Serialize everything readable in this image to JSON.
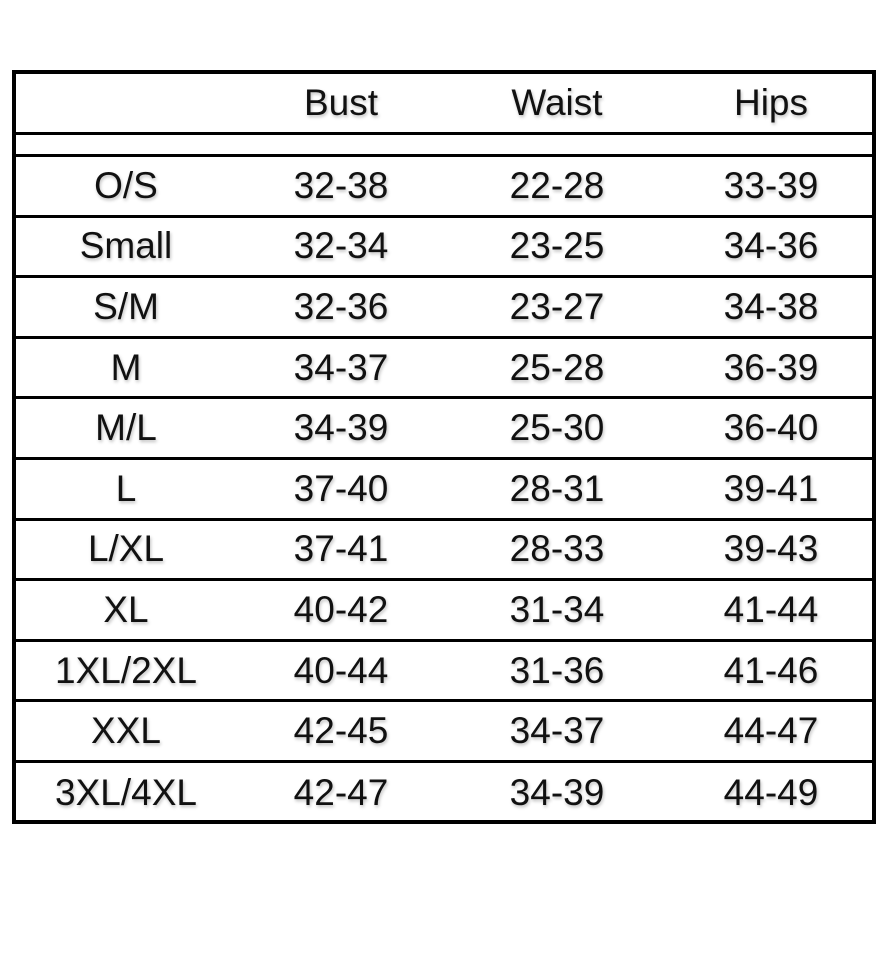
{
  "header": {
    "label": "",
    "columns": [
      "Bust",
      "Waist",
      "Hips"
    ]
  },
  "rows": [
    {
      "size": "O/S",
      "bust": "32-38",
      "waist": "22-28",
      "hips": "33-39"
    },
    {
      "size": "Small",
      "bust": "32-34",
      "waist": "23-25",
      "hips": "34-36"
    },
    {
      "size": "S/M",
      "bust": "32-36",
      "waist": "23-27",
      "hips": "34-38"
    },
    {
      "size": "M",
      "bust": "34-37",
      "waist": "25-28",
      "hips": "36-39"
    },
    {
      "size": "M/L",
      "bust": "34-39",
      "waist": "25-30",
      "hips": "36-40"
    },
    {
      "size": "L",
      "bust": "37-40",
      "waist": "28-31",
      "hips": "39-41"
    },
    {
      "size": "L/XL",
      "bust": "37-41",
      "waist": "28-33",
      "hips": "39-43"
    },
    {
      "size": "XL",
      "bust": "40-42",
      "waist": "31-34",
      "hips": "41-44"
    },
    {
      "size": "1XL/2XL",
      "bust": "40-44",
      "waist": "31-36",
      "hips": "41-46"
    },
    {
      "size": "XXL",
      "bust": "42-45",
      "waist": "34-37",
      "hips": "44-47"
    },
    {
      "size": "3XL/4XL",
      "bust": "42-47",
      "waist": "34-39",
      "hips": "44-49"
    }
  ]
}
